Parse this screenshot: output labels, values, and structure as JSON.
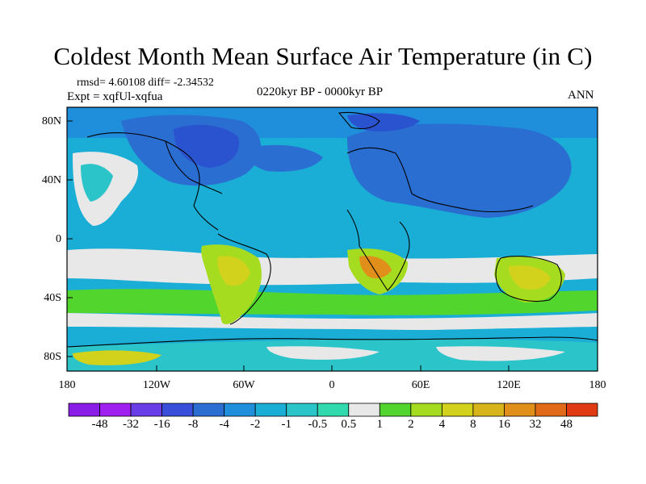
{
  "title": "Coldest Month Mean Surface Air Temperature (in C)",
  "stats_line": "rmsd= 4.60108  diff= -2.34532",
  "experiment": "Expt = xqfUl-xqfua",
  "period": "0220kyr BP - 0000kyr BP",
  "season": "ANN",
  "axes": {
    "y_ticks": [
      "80N",
      "40N",
      "0",
      "40S",
      "80S"
    ],
    "x_ticks": [
      "180",
      "120W",
      "60W",
      "0",
      "60E",
      "120E",
      "180"
    ]
  },
  "colorbar": {
    "labels": [
      "-48",
      "-32",
      "-16",
      "-8",
      "-4",
      "-2",
      "-1",
      "-0.5",
      "0.5",
      "1",
      "2",
      "4",
      "8",
      "16",
      "32",
      "48"
    ],
    "colors": [
      "#a020f0",
      "#6a3ee6",
      "#3a4fd9",
      "#2b6ed2",
      "#1f8fdc",
      "#1aaed6",
      "#2ac4c9",
      "#30d9ae",
      "#e8e8e8",
      "#52d62e",
      "#a5dc20",
      "#d2d21d",
      "#d6b41a",
      "#e08f1a",
      "#e06a18",
      "#e03a12"
    ]
  },
  "palette": {
    "deep_blue": "#2a53cf",
    "blue": "#2b6ed2",
    "mid_blue": "#1f8fdc",
    "cyan": "#1aaed6",
    "teal": "#2ac4c9",
    "white": "#e8e8e8",
    "green": "#52d62e",
    "yellow_green": "#a5dc20",
    "ochre": "#d2d21d",
    "orange": "#e08f1a"
  }
}
